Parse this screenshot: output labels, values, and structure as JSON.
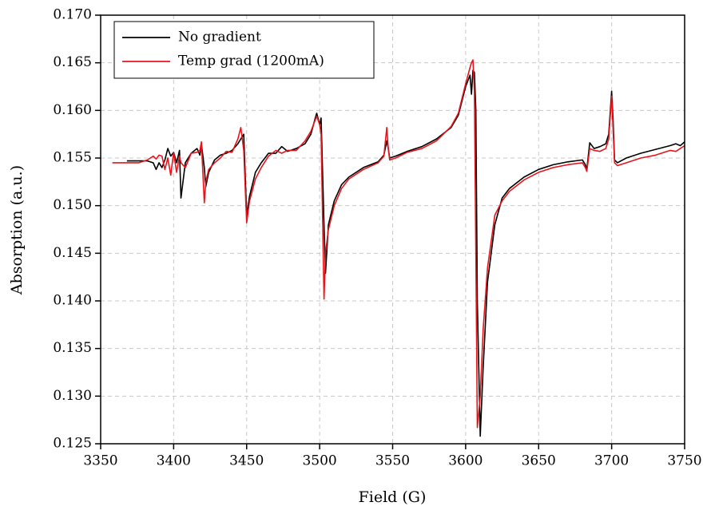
{
  "chart_data": {
    "type": "line",
    "xlabel": "Field (G)",
    "ylabel": "Absorption (a.u.)",
    "x": [
      3358,
      3366,
      3368,
      3376,
      3382,
      3386,
      3388,
      3390,
      3392,
      3394,
      3396,
      3398,
      3400,
      3402,
      3404,
      3405,
      3408,
      3412,
      3416,
      3418,
      3419,
      3421,
      3422,
      3424,
      3428,
      3432,
      3436,
      3440,
      3444,
      3446,
      3448,
      3450,
      3452,
      3456,
      3460,
      3465,
      3470,
      3474,
      3478,
      3484,
      3490,
      3494,
      3497,
      3498,
      3500,
      3501,
      3503,
      3504,
      3506,
      3510,
      3515,
      3520,
      3530,
      3540,
      3544,
      3546,
      3547,
      3548,
      3552,
      3560,
      3570,
      3580,
      3590,
      3595,
      3600,
      3603,
      3604,
      3605,
      3606,
      3607,
      3608,
      3610,
      3612,
      3615,
      3620,
      3625,
      3630,
      3640,
      3650,
      3660,
      3670,
      3680,
      3682,
      3683,
      3685,
      3688,
      3692,
      3696,
      3698,
      3700,
      3701,
      3702,
      3704,
      3710,
      3720,
      3730,
      3740,
      3744,
      3747,
      3750
    ],
    "series": [
      {
        "name": "No gradient",
        "color": "#000000",
        "values": [
          null,
          null,
          0.1547,
          0.1547,
          0.1547,
          0.1545,
          0.1538,
          0.1545,
          0.154,
          0.1548,
          0.156,
          0.1552,
          0.1556,
          0.1545,
          0.1558,
          0.1508,
          0.1545,
          0.1555,
          0.156,
          0.1553,
          0.1565,
          0.154,
          0.152,
          0.1535,
          0.1548,
          0.1553,
          0.1555,
          0.1558,
          0.1565,
          0.157,
          0.1575,
          0.149,
          0.151,
          0.1535,
          0.1545,
          0.1555,
          0.1555,
          0.1562,
          0.1557,
          0.156,
          0.1565,
          0.1575,
          0.1592,
          0.1597,
          0.1585,
          0.1592,
          0.148,
          0.1429,
          0.148,
          0.1505,
          0.1522,
          0.153,
          0.154,
          0.1546,
          0.1553,
          0.1568,
          0.156,
          0.155,
          0.1552,
          0.1557,
          0.1562,
          0.157,
          0.1582,
          0.1595,
          0.1625,
          0.1637,
          0.1617,
          0.1642,
          0.164,
          0.16,
          0.14,
          0.1258,
          0.133,
          0.142,
          0.148,
          0.1508,
          0.1518,
          0.153,
          0.1538,
          0.1543,
          0.1546,
          0.1548,
          0.1543,
          0.1538,
          0.1566,
          0.156,
          0.1562,
          0.1565,
          0.1575,
          0.162,
          0.159,
          0.1548,
          0.1545,
          0.155,
          0.1555,
          0.1559,
          0.1563,
          0.1565,
          0.1563,
          0.1567
        ]
      },
      {
        "name": "Temp grad (1200mA)",
        "color": "#e8141c",
        "values": [
          0.1545,
          0.1545,
          0.1545,
          0.1545,
          0.1548,
          0.1552,
          0.1549,
          0.1553,
          0.1552,
          0.1538,
          0.155,
          0.1532,
          0.1556,
          0.1535,
          0.1552,
          0.1545,
          0.154,
          0.1555,
          0.1556,
          0.1558,
          0.1567,
          0.1503,
          0.1525,
          0.1538,
          0.1545,
          0.155,
          0.1557,
          0.1556,
          0.157,
          0.1582,
          0.1558,
          0.1482,
          0.1505,
          0.1528,
          0.154,
          0.1552,
          0.1558,
          0.1555,
          0.1558,
          0.1558,
          0.1568,
          0.1578,
          0.159,
          0.1594,
          0.1585,
          0.1575,
          0.1402,
          0.145,
          0.1475,
          0.15,
          0.1518,
          0.1528,
          0.1538,
          0.1545,
          0.1552,
          0.1582,
          0.156,
          0.1548,
          0.155,
          0.1556,
          0.156,
          0.1568,
          0.1583,
          0.1597,
          0.1628,
          0.1645,
          0.165,
          0.1653,
          0.162,
          0.145,
          0.1267,
          0.13,
          0.137,
          0.1435,
          0.149,
          0.1505,
          0.1515,
          0.1527,
          0.1535,
          0.154,
          0.1543,
          0.1545,
          0.154,
          0.1536,
          0.156,
          0.1558,
          0.1557,
          0.156,
          0.157,
          0.1615,
          0.158,
          0.1545,
          0.1542,
          0.1545,
          0.155,
          0.1553,
          0.1558,
          0.1557,
          0.156,
          0.1563
        ]
      }
    ],
    "xlim": [
      3350,
      3750
    ],
    "xticks": [
      3350,
      3400,
      3450,
      3500,
      3550,
      3600,
      3650,
      3700,
      3750
    ],
    "ylim": [
      0.125,
      0.17
    ],
    "yticks": [
      0.125,
      {
        "value": 0.13,
        "label": "0.130"
      },
      0.135,
      {
        "value": 0.14,
        "label": "0.140"
      },
      0.145,
      {
        "value": 0.15,
        "label": "0.150"
      },
      0.155,
      {
        "value": 0.16,
        "label": "0.160"
      },
      0.165,
      {
        "value": 0.17,
        "label": "0.170"
      }
    ],
    "grid": true,
    "legend": "upper left"
  }
}
